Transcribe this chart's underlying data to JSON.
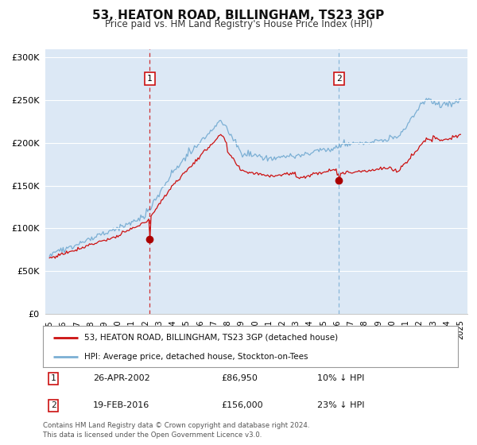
{
  "title": "53, HEATON ROAD, BILLINGHAM, TS23 3GP",
  "subtitle": "Price paid vs. HM Land Registry's House Price Index (HPI)",
  "legend_line1": "53, HEATON ROAD, BILLINGHAM, TS23 3GP (detached house)",
  "legend_line2": "HPI: Average price, detached house, Stockton-on-Tees",
  "marker1_date": "26-APR-2002",
  "marker1_price": "£86,950",
  "marker1_hpi": "10% ↓ HPI",
  "marker1_year": 2002.31,
  "marker1_value": 86950,
  "marker2_date": "19-FEB-2016",
  "marker2_price": "£156,000",
  "marker2_hpi": "23% ↓ HPI",
  "marker2_year": 2016.13,
  "marker2_value": 156000,
  "hpi_color": "#7bafd4",
  "price_color": "#cc1111",
  "marker_color": "#aa0000",
  "bg_color": "#dce8f5",
  "footer_text": "Contains HM Land Registry data © Crown copyright and database right 2024.\nThis data is licensed under the Open Government Licence v3.0.",
  "ylim": [
    0,
    310000
  ],
  "xlim_start": 1994.7,
  "xlim_end": 2025.5,
  "yticks": [
    0,
    50000,
    100000,
    150000,
    200000,
    250000,
    300000
  ],
  "ytick_labels": [
    "£0",
    "£50K",
    "£100K",
    "£150K",
    "£200K",
    "£250K",
    "£300K"
  ],
  "xticks": [
    1995,
    1996,
    1997,
    1998,
    1999,
    2000,
    2001,
    2002,
    2003,
    2004,
    2005,
    2006,
    2007,
    2008,
    2009,
    2010,
    2011,
    2012,
    2013,
    2014,
    2015,
    2016,
    2017,
    2018,
    2019,
    2020,
    2021,
    2022,
    2023,
    2024,
    2025
  ]
}
